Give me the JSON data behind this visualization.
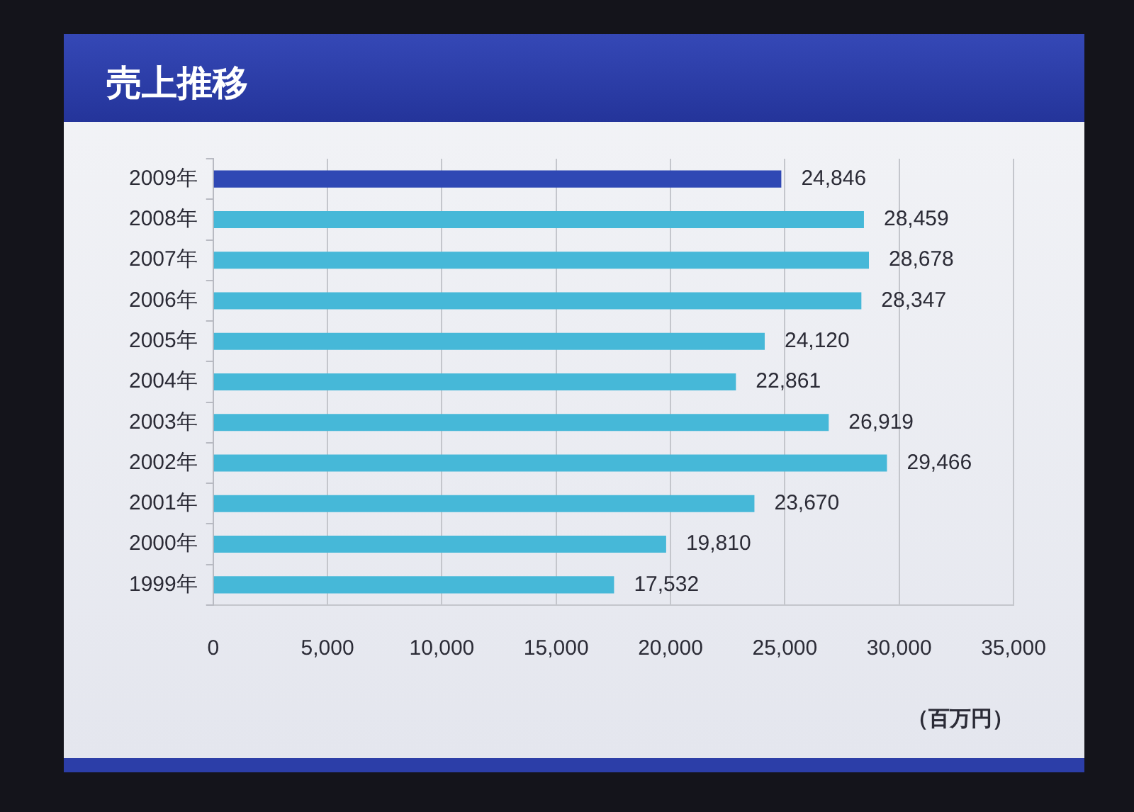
{
  "chart_data": {
    "type": "bar",
    "orientation": "horizontal",
    "title": "売上推移",
    "xlabel": "（百万円）",
    "categories": [
      "2009年",
      "2008年",
      "2007年",
      "2006年",
      "2005年",
      "2004年",
      "2003年",
      "2002年",
      "2001年",
      "2000年",
      "1999年"
    ],
    "values": [
      24846,
      28459,
      28678,
      28347,
      24120,
      22861,
      26919,
      29466,
      23670,
      19810,
      17532
    ],
    "value_labels": [
      "24,846",
      "28,459",
      "28,678",
      "28,347",
      "24,120",
      "22,861",
      "26,919",
      "29,466",
      "23,670",
      "19,810",
      "17,532"
    ],
    "colors": [
      "#2f48b4",
      "#46b8d8",
      "#46b8d8",
      "#46b8d8",
      "#46b8d8",
      "#46b8d8",
      "#46b8d8",
      "#46b8d8",
      "#46b8d8",
      "#46b8d8",
      "#46b8d8"
    ],
    "xlim": [
      0,
      35000
    ],
    "xticks": [
      0,
      {
        "value": 5000,
        "label": "5,000"
      },
      {
        "value": 10000,
        "label": "10,000"
      },
      {
        "value": 15000,
        "label": "15,000"
      },
      {
        "value": 20000,
        "label": "20,000"
      },
      {
        "value": 25000,
        "label": "25,000"
      },
      {
        "value": 30000,
        "label": "30,000"
      },
      {
        "value": 35000,
        "label": "35,000"
      }
    ],
    "grid": "x"
  }
}
